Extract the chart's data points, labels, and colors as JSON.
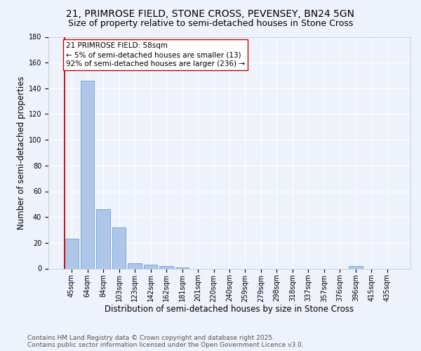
{
  "title1": "21, PRIMROSE FIELD, STONE CROSS, PEVENSEY, BN24 5GN",
  "title2": "Size of property relative to semi-detached houses in Stone Cross",
  "xlabel": "Distribution of semi-detached houses by size in Stone Cross",
  "ylabel": "Number of semi-detached properties",
  "footer1": "Contains HM Land Registry data © Crown copyright and database right 2025.",
  "footer2": "Contains public sector information licensed under the Open Government Licence v3.0.",
  "categories": [
    "45sqm",
    "64sqm",
    "84sqm",
    "103sqm",
    "123sqm",
    "142sqm",
    "162sqm",
    "181sqm",
    "201sqm",
    "220sqm",
    "240sqm",
    "259sqm",
    "279sqm",
    "298sqm",
    "318sqm",
    "337sqm",
    "357sqm",
    "376sqm",
    "396sqm",
    "415sqm",
    "435sqm"
  ],
  "values": [
    23,
    146,
    46,
    32,
    4,
    3,
    2,
    1,
    0,
    0,
    0,
    0,
    0,
    0,
    0,
    0,
    0,
    0,
    2,
    0,
    0
  ],
  "bar_color": "#aec6e8",
  "bar_edge_color": "#7aaad0",
  "highlight_color": "#cc0000",
  "annotation_text": "21 PRIMROSE FIELD: 58sqm\n← 5% of semi-detached houses are smaller (13)\n92% of semi-detached houses are larger (236) →",
  "annotation_box_color": "#ffffff",
  "annotation_box_edge_color": "#cc0000",
  "vline_x_index": 0,
  "ylim": [
    0,
    180
  ],
  "yticks": [
    0,
    20,
    40,
    60,
    80,
    100,
    120,
    140,
    160,
    180
  ],
  "background_color": "#eef2fb",
  "grid_color": "#ffffff",
  "title_fontsize": 10,
  "subtitle_fontsize": 9,
  "axis_label_fontsize": 8.5,
  "tick_fontsize": 7,
  "footer_fontsize": 6.5,
  "annotation_fontsize": 7.5
}
